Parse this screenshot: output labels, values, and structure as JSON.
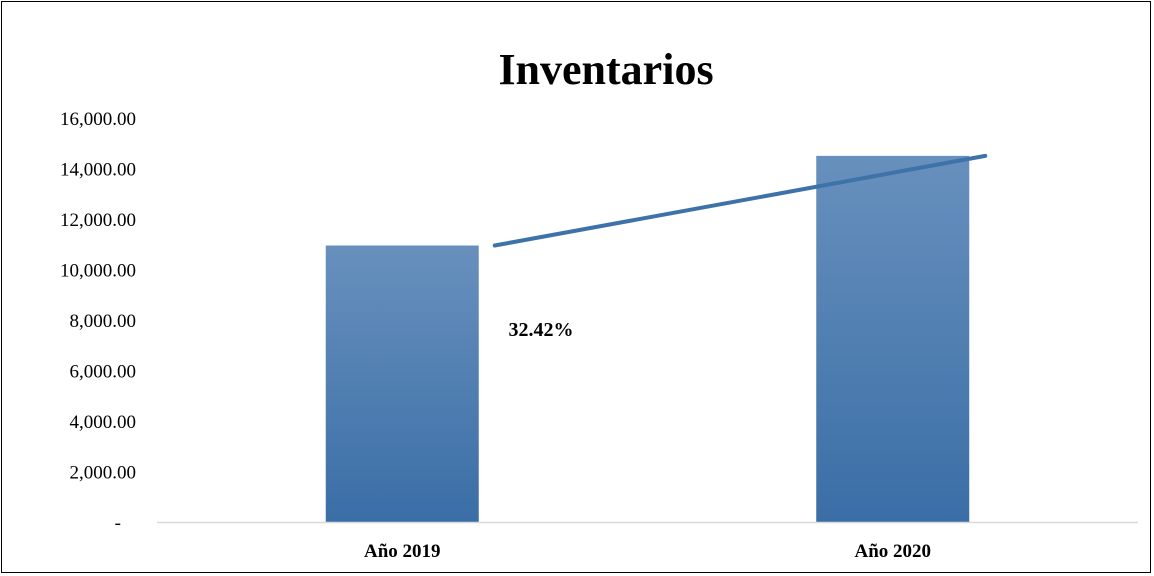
{
  "chart_data": {
    "type": "bar",
    "title": "Inventarios",
    "categories": [
      "Año 2019",
      "Año 2020"
    ],
    "values": [
      10950,
      14500
    ],
    "series": [
      {
        "values": [
          10950,
          14500
        ]
      }
    ],
    "trendline": {
      "values": [
        10950,
        14500
      ]
    },
    "annotation": "32.42%",
    "ylim": [
      0,
      16000
    ],
    "yticks": [
      0,
      2000,
      4000,
      6000,
      8000,
      10000,
      12000,
      14000,
      16000
    ],
    "ytick_labels": [
      "-",
      "2,000.00",
      "4,000.00",
      "6,000.00",
      "8,000.00",
      "10,000.00",
      "12,000.00",
      "14,000.00",
      "16,000.00"
    ],
    "xlabel": "",
    "ylabel": "",
    "grid": false,
    "legend": "none",
    "colors": {
      "bar_top": "#6890bd",
      "bar_bottom": "#3a6ea6",
      "trendline": "#3d73a8",
      "axis": "#d9d9d9"
    }
  }
}
